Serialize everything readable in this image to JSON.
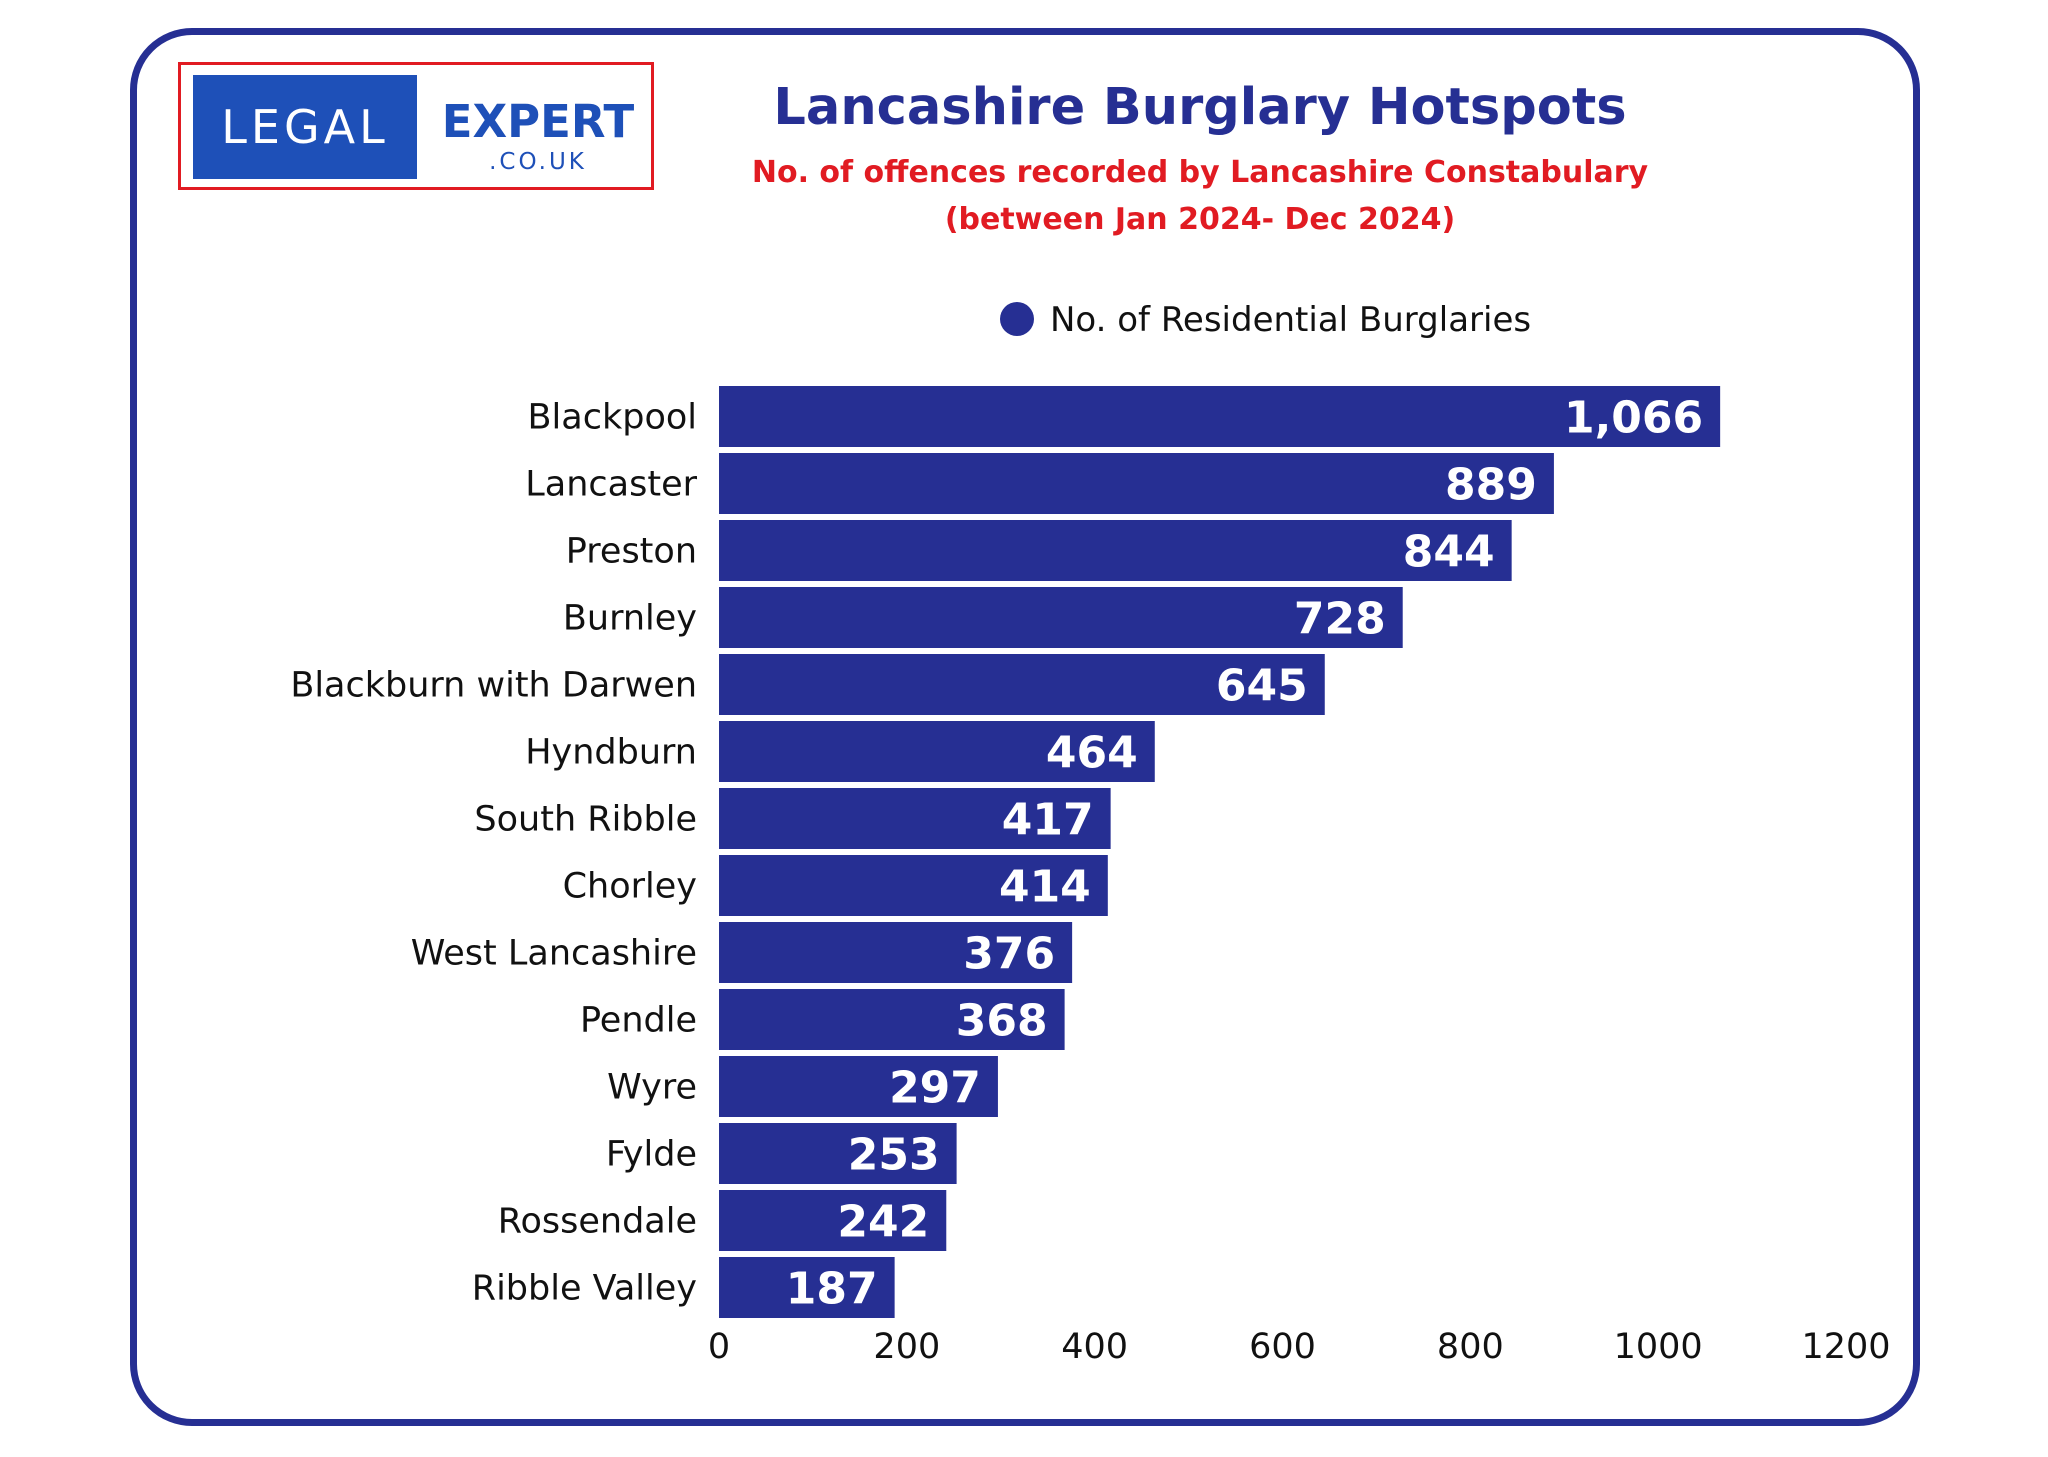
{
  "logo": {
    "part1": "LEGAL",
    "part2": "EXPERT",
    "part3": ".CO.UK"
  },
  "colors": {
    "bar": "#262f93",
    "border": "#262f93",
    "title": "#262f93",
    "subtitle": "#e11b22",
    "logo_blue": "#1e50b8",
    "logo_border": "#e11b22"
  },
  "chart_data": {
    "type": "bar",
    "orientation": "horizontal",
    "title": "Lancashire Burglary Hotspots",
    "subtitle_lines": [
      "No. of offences recorded by Lancashire Constabulary",
      "(between Jan 2024- Dec 2024)"
    ],
    "legend": {
      "position": "top",
      "entries": [
        "No. of Residential Burglaries"
      ]
    },
    "categories": [
      "Blackpool",
      "Lancaster",
      "Preston",
      "Burnley",
      "Blackburn with Darwen",
      "Hyndburn",
      "South Ribble",
      "Chorley",
      "West Lancashire",
      "Pendle",
      "Wyre",
      "Fylde",
      "Rossendale",
      "Ribble Valley"
    ],
    "series": [
      {
        "name": "No. of Residential Burglaries",
        "values": [
          1066,
          889,
          844,
          728,
          645,
          464,
          417,
          414,
          376,
          368,
          297,
          253,
          242,
          187
        ],
        "labels": [
          "1,066",
          "889",
          "844",
          "728",
          "645",
          "464",
          "417",
          "414",
          "376",
          "368",
          "297",
          "253",
          "242",
          "187"
        ]
      }
    ],
    "xlim": [
      0,
      1200
    ],
    "xticks": [
      "0",
      "200",
      "400",
      "600",
      "800",
      "1000",
      "1200"
    ],
    "grid": false
  }
}
